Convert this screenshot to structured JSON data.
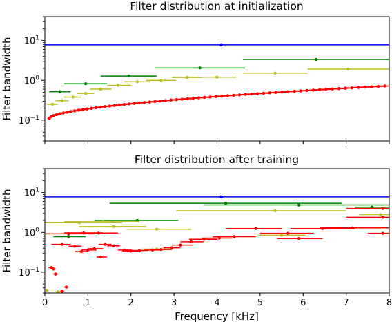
{
  "chart_data": {
    "type": "scatter",
    "shared_x": {
      "xlabel": "Frequency [kHz]",
      "xlim": [
        0,
        8
      ],
      "xticks": [
        "0",
        "1",
        "2",
        "3",
        "4",
        "5",
        "6",
        "7",
        "8"
      ]
    },
    "panels": [
      {
        "title": "Filter distribution at initialization",
        "ylabel": "Filter bandwidth",
        "yscale": "log",
        "ylim": [
          0.03,
          40
        ],
        "ytick_labels": [
          "10^1",
          "10^0",
          "10^-1"
        ],
        "grid": false,
        "series": [
          {
            "color": "#0000ff",
            "points": [
              [
                4.1,
                7.8,
                0.0,
                8.0
              ]
            ]
          },
          {
            "color": "#008000",
            "points": [
              [
                0.35,
                0.52,
                0.1,
                0.6
              ],
              [
                0.95,
                0.82,
                0.45,
                1.45
              ],
              [
                1.95,
                1.28,
                1.3,
                2.6
              ],
              [
                3.6,
                2.05,
                2.55,
                4.65
              ],
              [
                6.3,
                3.35,
                4.6,
                8.0
              ]
            ]
          },
          {
            "color": "#bcbd22",
            "points": [
              [
                0.18,
                0.25,
                0.05,
                0.3
              ],
              [
                0.4,
                0.31,
                0.25,
                0.55
              ],
              [
                0.65,
                0.38,
                0.45,
                0.85
              ],
              [
                0.95,
                0.47,
                0.75,
                1.15
              ],
              [
                1.3,
                0.6,
                1.05,
                1.55
              ],
              [
                1.7,
                0.75,
                1.45,
                2.0
              ],
              [
                2.15,
                0.92,
                1.85,
                2.45
              ],
              [
                2.7,
                1.0,
                2.35,
                3.05
              ],
              [
                3.3,
                1.18,
                2.95,
                3.65
              ],
              [
                4.0,
                1.2,
                3.55,
                4.45
              ],
              [
                5.35,
                1.52,
                4.6,
                6.1
              ],
              [
                7.05,
                1.92,
                6.1,
                8.0
              ]
            ]
          },
          {
            "color": "#ff0000",
            "points": "generated",
            "x_range": [
              0.1,
              7.9
            ],
            "y_range": [
              0.11,
              0.72
            ],
            "count": 64
          }
        ]
      },
      {
        "title": "Filter distribution after training",
        "ylabel": "Filter bandwidth",
        "yscale": "log",
        "ylim": [
          0.03,
          40
        ],
        "ytick_labels": [
          "10^1",
          "10^0",
          "10^-1"
        ],
        "grid": false,
        "series": [
          {
            "color": "#0000ff",
            "points": [
              [
                4.1,
                7.8,
                0.0,
                8.0
              ]
            ]
          },
          {
            "color": "#008000",
            "points": [
              [
                0.15,
                0.13,
                0.1,
                0.2
              ],
              [
                0.55,
                0.78,
                0.2,
                0.95
              ],
              [
                2.15,
                2.0,
                1.15,
                3.1
              ],
              [
                4.2,
                5.4,
                1.5,
                6.9
              ],
              [
                5.9,
                4.9,
                3.7,
                8.0
              ],
              [
                7.6,
                4.3,
                7.2,
                8.0
              ]
            ]
          },
          {
            "color": "#bcbd22",
            "points": [
              [
                0.05,
                0.035,
                0.05,
                0.05
              ],
              [
                0.3,
                0.032,
                0.25,
                0.35
              ],
              [
                0.8,
                1.75,
                0.0,
                1.8
              ],
              [
                1.35,
                1.85,
                0.45,
                2.2
              ],
              [
                1.6,
                1.4,
                0.8,
                2.35
              ],
              [
                2.6,
                1.2,
                1.9,
                3.4
              ],
              [
                2.6,
                0.38,
                2.25,
                2.95
              ],
              [
                5.35,
                3.5,
                3.05,
                7.0
              ],
              [
                5.5,
                0.85,
                4.95,
                6.05
              ],
              [
                7.8,
                2.8,
                7.3,
                8.0
              ]
            ]
          },
          {
            "color": "#ff0000",
            "points": [
              [
                0.15,
                0.13,
                0.08,
                0.2
              ],
              [
                0.2,
                0.12,
                0.15,
                0.25
              ],
              [
                0.25,
                0.09,
                0.2,
                0.3
              ],
              [
                0.4,
                0.033,
                0.35,
                0.45
              ],
              [
                0.5,
                0.042,
                0.45,
                0.55
              ],
              [
                0.55,
                0.92,
                0.0,
                1.15
              ],
              [
                0.9,
                0.97,
                0.45,
                1.35
              ],
              [
                1.25,
                0.96,
                0.8,
                1.7
              ],
              [
                0.4,
                0.5,
                0.15,
                0.6
              ],
              [
                0.7,
                0.45,
                0.55,
                0.85
              ],
              [
                0.85,
                0.33,
                0.7,
                1.0
              ],
              [
                1.0,
                0.36,
                0.85,
                1.2
              ],
              [
                1.15,
                0.39,
                1.0,
                1.35
              ],
              [
                1.3,
                0.24,
                1.2,
                1.45
              ],
              [
                1.4,
                0.5,
                1.25,
                1.55
              ],
              [
                1.6,
                0.46,
                1.45,
                1.75
              ],
              [
                1.85,
                0.36,
                1.7,
                2.0
              ],
              [
                2.0,
                0.34,
                1.8,
                2.2
              ],
              [
                2.2,
                0.35,
                2.0,
                2.4
              ],
              [
                2.5,
                0.36,
                2.3,
                2.7
              ],
              [
                2.7,
                0.37,
                2.55,
                2.95
              ],
              [
                2.95,
                0.41,
                2.75,
                3.15
              ],
              [
                3.15,
                0.48,
                2.95,
                3.45
              ],
              [
                3.4,
                0.58,
                3.15,
                3.7
              ],
              [
                3.7,
                0.67,
                3.35,
                4.0
              ],
              [
                4.05,
                0.72,
                3.65,
                4.35
              ],
              [
                4.4,
                0.78,
                3.9,
                4.9
              ],
              [
                4.9,
                1.25,
                4.2,
                5.5
              ],
              [
                5.65,
                0.95,
                5.0,
                6.25
              ],
              [
                5.9,
                0.7,
                5.4,
                6.45
              ],
              [
                6.45,
                1.25,
                5.7,
                7.2
              ],
              [
                7.15,
                1.3,
                6.4,
                8.0
              ],
              [
                7.85,
                0.95,
                7.5,
                8.0
              ],
              [
                7.85,
                2.4,
                7.0,
                8.0
              ],
              [
                7.85,
                4.0,
                7.0,
                8.0
              ]
            ]
          }
        ]
      }
    ]
  }
}
